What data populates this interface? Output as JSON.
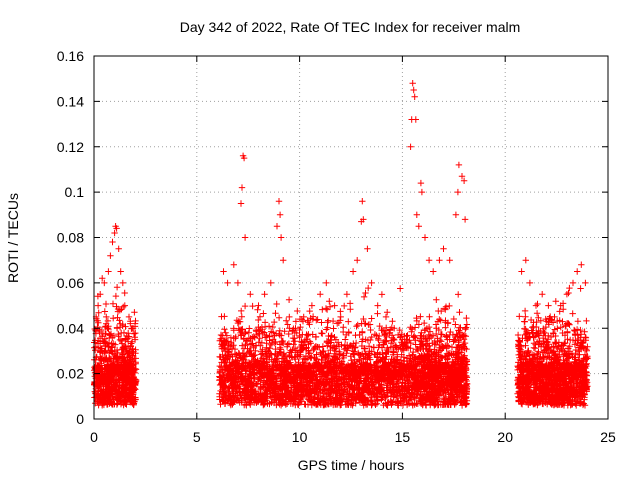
{
  "chart_data": {
    "type": "scatter",
    "title": "Day 342 of 2022, Rate Of TEC Index for receiver malm",
    "xlabel": "GPS time / hours",
    "ylabel": "ROTI / TECUs",
    "xlim": [
      0,
      25
    ],
    "ylim": [
      0,
      0.16
    ],
    "x_ticks": [
      0,
      5,
      10,
      15,
      20,
      25
    ],
    "y_ticks": [
      0,
      0.02,
      0.04,
      0.06,
      0.08,
      0.1,
      0.12,
      0.14,
      0.16
    ],
    "x_tick_labels": [
      "0",
      "5",
      "10",
      "15",
      "20",
      "25"
    ],
    "y_tick_labels": [
      "0",
      "0.02",
      "0.04",
      "0.06",
      "0.08",
      "0.1",
      "0.12",
      "0.14",
      "0.16"
    ],
    "grid": true,
    "marker": "+",
    "color": "#ff0000",
    "segments": [
      {
        "start": 0.0,
        "end": 2.05
      },
      {
        "start": 6.1,
        "end": 15.85
      },
      {
        "start": 15.85,
        "end": 18.15
      },
      {
        "start": 20.6,
        "end": 24.0
      }
    ],
    "points": [
      [
        0.1,
        0.045
      ],
      [
        0.2,
        0.05
      ],
      [
        0.3,
        0.055
      ],
      [
        0.4,
        0.062
      ],
      [
        0.5,
        0.06
      ],
      [
        0.6,
        0.045
      ],
      [
        0.7,
        0.065
      ],
      [
        0.8,
        0.072
      ],
      [
        0.9,
        0.078
      ],
      [
        1.0,
        0.082
      ],
      [
        1.05,
        0.085
      ],
      [
        1.1,
        0.084
      ],
      [
        1.2,
        0.075
      ],
      [
        1.3,
        0.065
      ],
      [
        1.4,
        0.06
      ],
      [
        1.5,
        0.05
      ],
      [
        1.7,
        0.045
      ],
      [
        1.9,
        0.04
      ],
      [
        2.0,
        0.035
      ],
      [
        6.3,
        0.065
      ],
      [
        6.5,
        0.06
      ],
      [
        6.8,
        0.068
      ],
      [
        7.0,
        0.06
      ],
      [
        7.15,
        0.095
      ],
      [
        7.2,
        0.102
      ],
      [
        7.25,
        0.116
      ],
      [
        7.3,
        0.115
      ],
      [
        7.35,
        0.08
      ],
      [
        7.6,
        0.055
      ],
      [
        8.0,
        0.05
      ],
      [
        8.3,
        0.055
      ],
      [
        8.6,
        0.06
      ],
      [
        8.9,
        0.085
      ],
      [
        9.0,
        0.096
      ],
      [
        9.05,
        0.09
      ],
      [
        9.1,
        0.08
      ],
      [
        9.2,
        0.07
      ],
      [
        9.5,
        0.045
      ],
      [
        9.8,
        0.04
      ],
      [
        10.2,
        0.045
      ],
      [
        10.6,
        0.05
      ],
      [
        11.0,
        0.055
      ],
      [
        11.3,
        0.06
      ],
      [
        11.7,
        0.05
      ],
      [
        12.0,
        0.045
      ],
      [
        12.3,
        0.055
      ],
      [
        12.6,
        0.065
      ],
      [
        12.8,
        0.07
      ],
      [
        13.0,
        0.087
      ],
      [
        13.05,
        0.096
      ],
      [
        13.1,
        0.088
      ],
      [
        13.3,
        0.075
      ],
      [
        13.5,
        0.06
      ],
      [
        13.8,
        0.05
      ],
      [
        14.2,
        0.045
      ],
      [
        14.6,
        0.04
      ],
      [
        15.0,
        0.035
      ],
      [
        15.4,
        0.12
      ],
      [
        15.45,
        0.132
      ],
      [
        15.5,
        0.148
      ],
      [
        15.55,
        0.145
      ],
      [
        15.6,
        0.142
      ],
      [
        15.65,
        0.132
      ],
      [
        15.7,
        0.09
      ],
      [
        15.8,
        0.085
      ],
      [
        15.9,
        0.104
      ],
      [
        15.95,
        0.1
      ],
      [
        16.1,
        0.08
      ],
      [
        16.3,
        0.07
      ],
      [
        16.5,
        0.065
      ],
      [
        16.8,
        0.07
      ],
      [
        17.0,
        0.075
      ],
      [
        17.3,
        0.07
      ],
      [
        17.6,
        0.09
      ],
      [
        17.7,
        0.1
      ],
      [
        17.75,
        0.112
      ],
      [
        17.9,
        0.107
      ],
      [
        18.0,
        0.105
      ],
      [
        18.05,
        0.088
      ],
      [
        20.8,
        0.065
      ],
      [
        21.0,
        0.07
      ],
      [
        21.2,
        0.06
      ],
      [
        21.5,
        0.05
      ],
      [
        21.8,
        0.055
      ],
      [
        22.1,
        0.05
      ],
      [
        22.4,
        0.045
      ],
      [
        22.7,
        0.05
      ],
      [
        23.0,
        0.055
      ],
      [
        23.3,
        0.06
      ],
      [
        23.5,
        0.065
      ],
      [
        23.7,
        0.068
      ],
      [
        23.9,
        0.06
      ]
    ]
  }
}
